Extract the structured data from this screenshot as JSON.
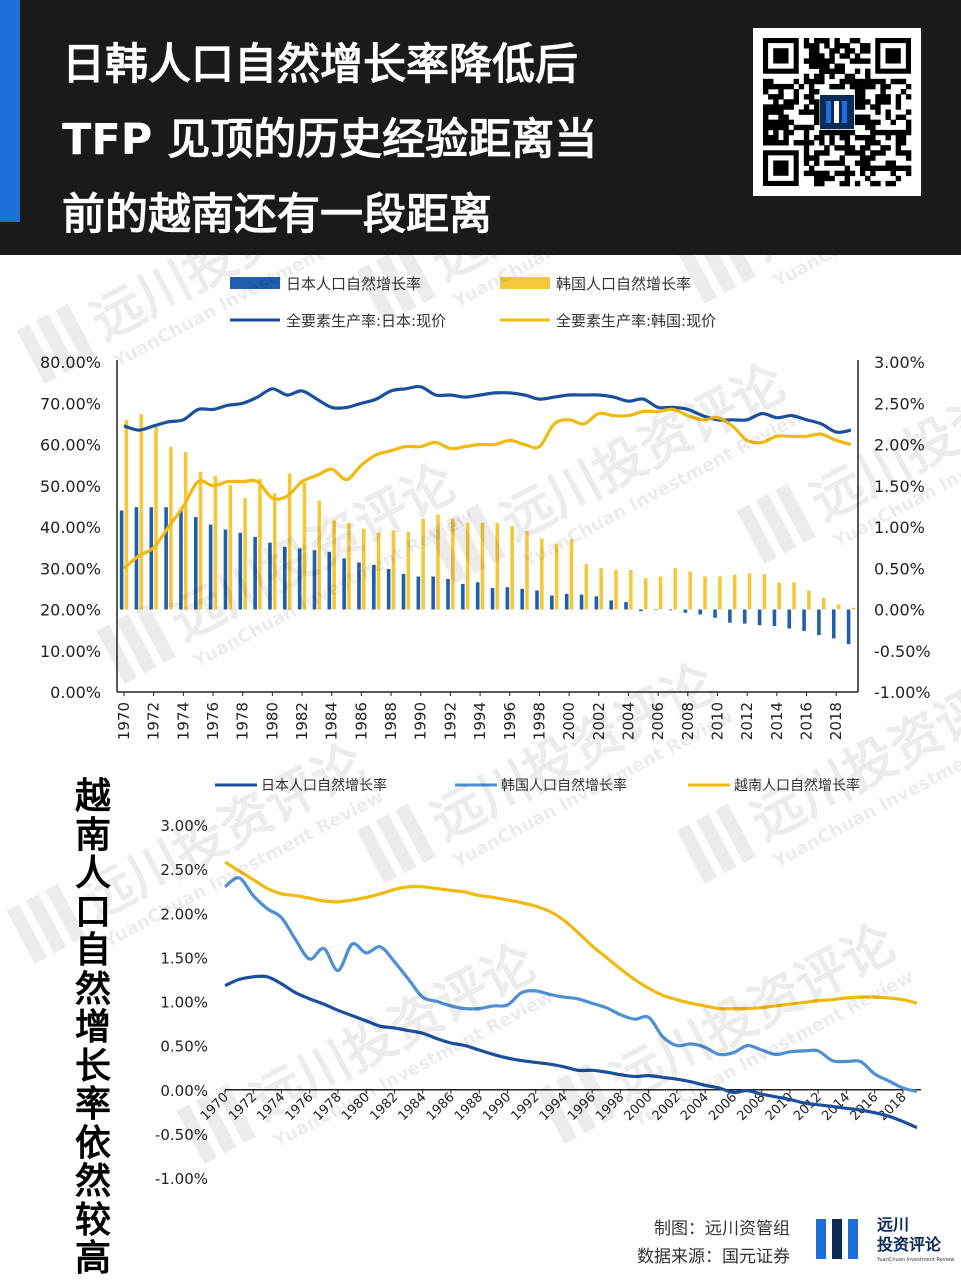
{
  "header": {
    "title_lines": [
      "日韩人口自然增长率降低后",
      "TFP 见顶的历史经验距离当",
      "前的越南还有一段距离"
    ]
  },
  "side_title": "越南人口自然增长率依然较高",
  "footer": {
    "credit_1": "制图：远川资管组",
    "credit_2": "数据来源：国元证券",
    "logo_line1": "远川",
    "logo_line2": "投资评论",
    "logo_sub": "YuanChuan Investment Review"
  },
  "watermark": {
    "text_cn": "远川投资评论",
    "text_en": "YuanChuan Investment Review"
  },
  "colors": {
    "japan_bar": "#1f5fad",
    "korea_bar": "#f5c83c",
    "japan_tfp": "#1c4f9c",
    "korea_tfp": "#f2b90f",
    "japan_pop": "#1c4f9c",
    "korea_pop": "#4f8fd3",
    "vietnam_pop": "#f2b90f"
  },
  "chart_data": [
    {
      "type": "bar+line",
      "legend": [
        {
          "name": "日本人口自然增长率",
          "kind": "bar",
          "color": "#1f5fad"
        },
        {
          "name": "韩国人口自然增长率",
          "kind": "bar",
          "color": "#f5c83c"
        },
        {
          "name": "全要素生产率:日本:现价",
          "kind": "line",
          "color": "#1c4f9c"
        },
        {
          "name": "全要素生产率:韩国:现价",
          "kind": "line",
          "color": "#f2b90f"
        }
      ],
      "legend_placement": "top",
      "x": [
        1970,
        1971,
        1972,
        1973,
        1974,
        1975,
        1976,
        1977,
        1978,
        1979,
        1980,
        1981,
        1982,
        1983,
        1984,
        1985,
        1986,
        1987,
        1988,
        1989,
        1990,
        1991,
        1992,
        1993,
        1994,
        1995,
        1996,
        1997,
        1998,
        1999,
        2000,
        2001,
        2002,
        2003,
        2004,
        2005,
        2006,
        2007,
        2008,
        2009,
        2010,
        2011,
        2012,
        2013,
        2014,
        2015,
        2016,
        2017,
        2018,
        2019
      ],
      "x_tick_labels": [
        "1970",
        "1972",
        "1974",
        "1976",
        "1978",
        "1980",
        "1982",
        "1984",
        "1986",
        "1988",
        "1990",
        "1992",
        "1994",
        "1996",
        "1998",
        "2000",
        "2002",
        "2004",
        "2006",
        "2008",
        "2010",
        "2012",
        "2014",
        "2016",
        "2018"
      ],
      "y_left_ticks": [
        "80.00%",
        "70.00%",
        "60.00%",
        "50.00%",
        "40.00%",
        "30.00%",
        "20.00%",
        "10.00%",
        "0.00%"
      ],
      "y_left_range": [
        0,
        80
      ],
      "y_right_ticks": [
        "3.00%",
        "2.50%",
        "2.00%",
        "1.50%",
        "1.00%",
        "0.50%",
        "0.00%",
        "-0.50%",
        "-1.00%"
      ],
      "y_right_range": [
        -1.0,
        3.0
      ],
      "series": [
        {
          "name": "日本人口自然增长率",
          "axis": "right",
          "kind": "bar",
          "values": [
            1.2,
            1.24,
            1.24,
            1.24,
            1.2,
            1.12,
            1.03,
            0.97,
            0.93,
            0.88,
            0.81,
            0.76,
            0.74,
            0.72,
            0.7,
            0.62,
            0.57,
            0.54,
            0.49,
            0.43,
            0.4,
            0.4,
            0.37,
            0.31,
            0.33,
            0.26,
            0.27,
            0.25,
            0.23,
            0.17,
            0.19,
            0.18,
            0.16,
            0.11,
            0.09,
            -0.02,
            0.0,
            -0.01,
            -0.04,
            -0.06,
            -0.1,
            -0.16,
            -0.17,
            -0.19,
            -0.2,
            -0.23,
            -0.26,
            -0.31,
            -0.35,
            -0.42
          ]
        },
        {
          "name": "韩国人口自然增长率",
          "axis": "right",
          "kind": "bar",
          "values": [
            2.3,
            2.37,
            2.22,
            1.97,
            1.91,
            1.67,
            1.62,
            1.51,
            1.35,
            1.58,
            1.41,
            1.65,
            1.54,
            1.32,
            1.08,
            1.05,
            0.98,
            0.93,
            0.96,
            0.94,
            1.1,
            1.15,
            1.1,
            1.05,
            1.05,
            1.05,
            1.01,
            0.95,
            0.86,
            0.8,
            0.85,
            0.55,
            0.5,
            0.48,
            0.48,
            0.38,
            0.4,
            0.5,
            0.46,
            0.4,
            0.4,
            0.42,
            0.44,
            0.43,
            0.33,
            0.33,
            0.23,
            0.14,
            0.06,
            0.02
          ]
        },
        {
          "name": "全要素生产率:日本:现价",
          "axis": "left",
          "kind": "line",
          "values": [
            64.5,
            63.5,
            64.5,
            65.5,
            66,
            68.5,
            68.5,
            69.5,
            70,
            71.5,
            73.5,
            72,
            73,
            71,
            69,
            69,
            70,
            71,
            73,
            73.5,
            74,
            72,
            72,
            71.5,
            72,
            72.5,
            72.5,
            72,
            71,
            71.5,
            72,
            72,
            72,
            71.5,
            70.5,
            71,
            69,
            69,
            68.5,
            67,
            66,
            66,
            66,
            67.5,
            66.5,
            67,
            66,
            65,
            63,
            63.5
          ]
        },
        {
          "name": "全要素生产率:韩国:现价",
          "axis": "left",
          "kind": "line",
          "values": [
            30,
            33,
            35,
            40,
            45,
            51,
            50,
            51,
            51,
            51,
            47,
            47.5,
            51,
            52.5,
            54,
            51.5,
            55,
            57.5,
            58.5,
            59.5,
            59.5,
            60.5,
            59,
            59.5,
            60,
            60,
            61,
            60,
            59.5,
            65,
            66,
            65,
            67.5,
            67,
            67,
            68,
            68,
            68.5,
            67,
            66,
            66.5,
            64.5,
            61,
            60.5,
            62,
            62,
            62,
            62.5,
            61,
            60
          ]
        }
      ]
    },
    {
      "type": "line",
      "legend": [
        {
          "name": "日本人口自然增长率",
          "color": "#1c4f9c"
        },
        {
          "name": "韩国人口自然增长率",
          "color": "#4f8fd3"
        },
        {
          "name": "越南人口自然增长率",
          "color": "#f2b90f"
        }
      ],
      "legend_placement": "top",
      "x": [
        1970,
        1971,
        1972,
        1973,
        1974,
        1975,
        1976,
        1977,
        1978,
        1979,
        1980,
        1981,
        1982,
        1983,
        1984,
        1985,
        1986,
        1987,
        1988,
        1989,
        1990,
        1991,
        1992,
        1993,
        1994,
        1995,
        1996,
        1997,
        1998,
        1999,
        2000,
        2001,
        2002,
        2003,
        2004,
        2005,
        2006,
        2007,
        2008,
        2009,
        2010,
        2011,
        2012,
        2013,
        2014,
        2015,
        2016,
        2017,
        2018,
        2019
      ],
      "x_tick_labels": [
        "1970",
        "1972",
        "1974",
        "1976",
        "1978",
        "1980",
        "1982",
        "1984",
        "1986",
        "1988",
        "1990",
        "1992",
        "1994",
        "1996",
        "1998",
        "2000",
        "2002",
        "2004",
        "2006",
        "2008",
        "2010",
        "2012",
        "2014",
        "2016",
        "2018"
      ],
      "y_ticks": [
        "3.00%",
        "2.50%",
        "2.00%",
        "1.50%",
        "1.00%",
        "0.50%",
        "0.00%",
        "-0.50%",
        "-1.00%"
      ],
      "y_range": [
        -1.0,
        3.0
      ],
      "series": [
        {
          "name": "日本人口自然增长率",
          "values": [
            1.18,
            1.25,
            1.28,
            1.28,
            1.2,
            1.1,
            1.03,
            0.97,
            0.9,
            0.84,
            0.78,
            0.72,
            0.7,
            0.67,
            0.64,
            0.58,
            0.53,
            0.5,
            0.45,
            0.4,
            0.36,
            0.33,
            0.31,
            0.29,
            0.26,
            0.22,
            0.22,
            0.2,
            0.17,
            0.15,
            0.16,
            0.14,
            0.12,
            0.09,
            0.05,
            0.02,
            -0.03,
            -0.01,
            -0.05,
            -0.08,
            -0.11,
            -0.15,
            -0.17,
            -0.19,
            -0.21,
            -0.23,
            -0.26,
            -0.3,
            -0.36,
            -0.43
          ]
        },
        {
          "name": "韩国人口自然增长率",
          "values": [
            2.3,
            2.4,
            2.2,
            2.05,
            1.95,
            1.7,
            1.48,
            1.6,
            1.35,
            1.65,
            1.55,
            1.62,
            1.45,
            1.25,
            1.05,
            1.0,
            0.95,
            0.92,
            0.92,
            0.95,
            0.96,
            1.1,
            1.12,
            1.08,
            1.05,
            1.03,
            0.98,
            0.93,
            0.85,
            0.8,
            0.82,
            0.6,
            0.5,
            0.52,
            0.48,
            0.4,
            0.42,
            0.5,
            0.45,
            0.4,
            0.43,
            0.44,
            0.44,
            0.33,
            0.32,
            0.32,
            0.18,
            0.1,
            0.02,
            -0.02
          ]
        },
        {
          "name": "越南人口自然增长率",
          "values": [
            2.58,
            2.48,
            2.38,
            2.28,
            2.22,
            2.2,
            2.17,
            2.14,
            2.13,
            2.15,
            2.18,
            2.22,
            2.27,
            2.3,
            2.3,
            2.28,
            2.26,
            2.24,
            2.2,
            2.18,
            2.15,
            2.12,
            2.08,
            2.02,
            1.92,
            1.78,
            1.63,
            1.5,
            1.37,
            1.25,
            1.15,
            1.07,
            1.02,
            0.98,
            0.95,
            0.92,
            0.92,
            0.92,
            0.93,
            0.95,
            0.97,
            0.99,
            1.01,
            1.02,
            1.04,
            1.05,
            1.05,
            1.04,
            1.02,
            0.98
          ]
        }
      ]
    }
  ]
}
